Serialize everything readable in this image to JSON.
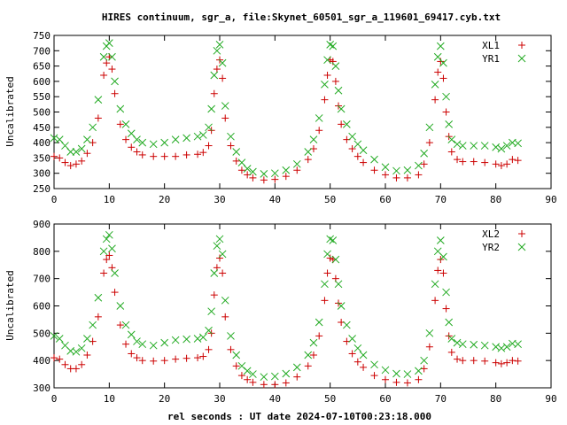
{
  "chart_data": {
    "type": "scatter",
    "title": "HIRES continuum, sgr_a, file:Skynet_60501_sgr_a_119601_69417.cyb.txt",
    "xlabel": "rel seconds : UT date 2024-07-10T00:23:18.000",
    "xlim": [
      0,
      90
    ],
    "x_ticks": [
      "0",
      "10",
      "20",
      "30",
      "40",
      "50",
      "60",
      "70",
      "80",
      "90"
    ],
    "legend_position": "top-right",
    "grid": false,
    "panels": [
      {
        "ylabel": "Uncalibrated",
        "ylim": [
          250,
          750
        ],
        "y_ticks": [
          "250",
          "300",
          "350",
          "400",
          "450",
          "500",
          "550",
          "600",
          "650",
          "700",
          "750"
        ],
        "series": [
          {
            "name": "XL1",
            "marker": "plus",
            "color": "#cc0000",
            "x": [
              0,
              1,
              2,
              3,
              4,
              5,
              6,
              7,
              8,
              9,
              9.5,
              10,
              10.5,
              11,
              12,
              13,
              14,
              15,
              16,
              18,
              20,
              22,
              24,
              26,
              27,
              28,
              28.5,
              29,
              29.5,
              30,
              30.5,
              31,
              32,
              33,
              34,
              35,
              36,
              38,
              40,
              42,
              44,
              46,
              47,
              48,
              49,
              49.5,
              50,
              50.5,
              51,
              51.5,
              52,
              53,
              54,
              55,
              56,
              58,
              60,
              62,
              64,
              66,
              67,
              68,
              69,
              69.5,
              70,
              70.5,
              71,
              71.5,
              72,
              73,
              74,
              76,
              78,
              80,
              81,
              82,
              83,
              84
            ],
            "y": [
              355,
              350,
              335,
              325,
              330,
              340,
              365,
              400,
              480,
              620,
              660,
              680,
              640,
              560,
              460,
              410,
              385,
              370,
              360,
              355,
              355,
              355,
              360,
              362,
              368,
              390,
              440,
              560,
              640,
              670,
              610,
              480,
              390,
              340,
              310,
              295,
              285,
              278,
              280,
              290,
              310,
              345,
              380,
              440,
              540,
              620,
              670,
              665,
              600,
              520,
              460,
              410,
              380,
              355,
              335,
              310,
              295,
              285,
              285,
              295,
              330,
              400,
              540,
              630,
              665,
              610,
              500,
              420,
              370,
              345,
              338,
              338,
              335,
              330,
              325,
              330,
              345,
              342
            ]
          },
          {
            "name": "YR1",
            "marker": "cross",
            "color": "#22aa22",
            "x": [
              0,
              1,
              2,
              3,
              4,
              5,
              6,
              7,
              8,
              9,
              9.5,
              10,
              10.5,
              11,
              12,
              13,
              14,
              15,
              16,
              18,
              20,
              22,
              24,
              26,
              27,
              28,
              28.5,
              29,
              29.5,
              30,
              30.5,
              31,
              32,
              33,
              34,
              35,
              36,
              38,
              40,
              42,
              44,
              46,
              47,
              48,
              49,
              49.5,
              50,
              50.5,
              51,
              51.5,
              52,
              53,
              54,
              55,
              56,
              58,
              60,
              62,
              64,
              66,
              67,
              68,
              69,
              69.5,
              70,
              70.5,
              71,
              71.5,
              72,
              73,
              74,
              76,
              78,
              80,
              81,
              82,
              83,
              84
            ],
            "y": [
              415,
              410,
              390,
              370,
              370,
              380,
              410,
              450,
              540,
              680,
              715,
              725,
              680,
              600,
              510,
              460,
              430,
              410,
              400,
              395,
              400,
              410,
              415,
              420,
              425,
              450,
              510,
              620,
              700,
              720,
              660,
              520,
              420,
              370,
              335,
              315,
              305,
              298,
              300,
              310,
              330,
              370,
              410,
              480,
              590,
              670,
              720,
              715,
              650,
              570,
              510,
              460,
              420,
              395,
              375,
              345,
              320,
              308,
              310,
              325,
              365,
              450,
              590,
              680,
              715,
              660,
              550,
              460,
              410,
              395,
              390,
              390,
              390,
              385,
              380,
              390,
              400,
              398
            ]
          }
        ]
      },
      {
        "ylabel": "Uncalibrated",
        "ylim": [
          300,
          900
        ],
        "y_ticks": [
          "300",
          "400",
          "500",
          "600",
          "700",
          "800",
          "900"
        ],
        "series": [
          {
            "name": "XL2",
            "marker": "plus",
            "color": "#cc0000",
            "x": [
              0,
              1,
              2,
              3,
              4,
              5,
              6,
              7,
              8,
              9,
              9.5,
              10,
              10.5,
              11,
              12,
              13,
              14,
              15,
              16,
              18,
              20,
              22,
              24,
              26,
              27,
              28,
              28.5,
              29,
              29.5,
              30,
              30.5,
              31,
              32,
              33,
              34,
              35,
              36,
              38,
              40,
              42,
              44,
              46,
              47,
              48,
              49,
              49.5,
              50,
              50.5,
              51,
              51.5,
              52,
              53,
              54,
              55,
              56,
              58,
              60,
              62,
              64,
              66,
              67,
              68,
              69,
              69.5,
              70,
              70.5,
              71,
              71.5,
              72,
              73,
              74,
              76,
              78,
              80,
              81,
              82,
              83,
              84
            ],
            "y": [
              410,
              405,
              385,
              370,
              370,
              385,
              420,
              470,
              560,
              720,
              770,
              785,
              740,
              650,
              530,
              460,
              425,
              410,
              400,
              398,
              400,
              405,
              408,
              410,
              415,
              440,
              500,
              640,
              740,
              775,
              720,
              560,
              440,
              380,
              345,
              330,
              320,
              312,
              312,
              318,
              340,
              380,
              420,
              490,
              620,
              720,
              775,
              770,
              700,
              610,
              540,
              470,
              425,
              395,
              375,
              345,
              330,
              320,
              318,
              330,
              370,
              450,
              620,
              730,
              770,
              720,
              590,
              490,
              430,
              405,
              400,
              400,
              398,
              392,
              388,
              392,
              400,
              398
            ]
          },
          {
            "name": "YR2",
            "marker": "cross",
            "color": "#22aa22",
            "x": [
              0,
              1,
              2,
              3,
              4,
              5,
              6,
              7,
              8,
              9,
              9.5,
              10,
              10.5,
              11,
              12,
              13,
              14,
              15,
              16,
              18,
              20,
              22,
              24,
              26,
              27,
              28,
              28.5,
              29,
              29.5,
              30,
              30.5,
              31,
              32,
              33,
              34,
              35,
              36,
              38,
              40,
              42,
              44,
              46,
              47,
              48,
              49,
              49.5,
              50,
              50.5,
              51,
              51.5,
              52,
              53,
              54,
              55,
              56,
              58,
              60,
              62,
              64,
              66,
              67,
              68,
              69,
              69.5,
              70,
              70.5,
              71,
              71.5,
              72,
              73,
              74,
              76,
              78,
              80,
              81,
              82,
              83,
              84
            ],
            "y": [
              490,
              480,
              455,
              435,
              432,
              445,
              480,
              530,
              630,
              800,
              845,
              860,
              810,
              720,
              600,
              530,
              495,
              470,
              460,
              455,
              465,
              475,
              478,
              480,
              485,
              510,
              580,
              720,
              820,
              845,
              790,
              620,
              490,
              420,
              380,
              362,
              350,
              340,
              342,
              352,
              375,
              420,
              465,
              540,
              680,
              790,
              845,
              840,
              770,
              680,
              600,
              530,
              480,
              445,
              420,
              385,
              365,
              352,
              350,
              362,
              400,
              500,
              680,
              800,
              840,
              780,
              650,
              540,
              480,
              465,
              460,
              458,
              455,
              450,
              445,
              450,
              462,
              460
            ]
          }
        ]
      }
    ]
  }
}
